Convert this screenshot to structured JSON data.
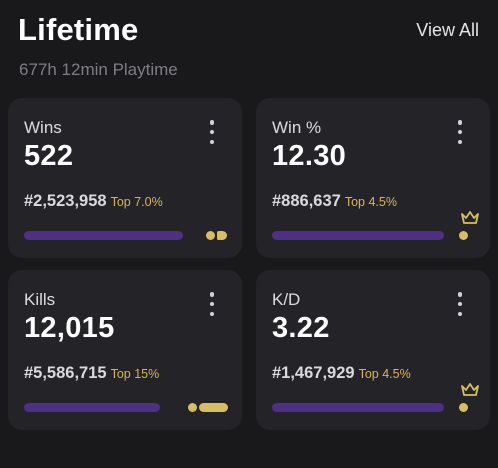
{
  "header": {
    "title": "Lifetime",
    "view_all_label": "View All",
    "playtime": "677h 12min Playtime"
  },
  "colors": {
    "background": "#19191c",
    "card": "#242428",
    "bar": "#4e2f83",
    "accent_gold": "#d6bf63",
    "top_percent_text": "#d8b45a"
  },
  "icons": {
    "menu": "kebab-vertical-icon",
    "crown": "crown-icon"
  },
  "cards": [
    {
      "label": "Wins",
      "value": "522",
      "rank": "#2,523,958",
      "top": "Top 7.0%",
      "progress": 0.9,
      "indicator": "double-dot",
      "crown": false
    },
    {
      "label": "Win %",
      "value": "12.30",
      "rank": "#886,637",
      "top": "Top 4.5%",
      "progress": 0.95,
      "indicator": "dot",
      "crown": true
    },
    {
      "label": "Kills",
      "value": "12,015",
      "rank": "#5,586,715",
      "top": "Top 15%",
      "progress": 0.85,
      "indicator": "dot-pill",
      "crown": false
    },
    {
      "label": "K/D",
      "value": "3.22",
      "rank": "#1,467,929",
      "top": "Top 4.5%",
      "progress": 0.95,
      "indicator": "dot",
      "crown": true
    }
  ]
}
